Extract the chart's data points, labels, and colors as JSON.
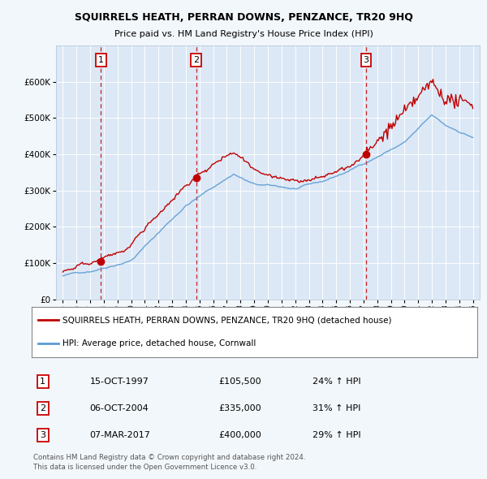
{
  "title": "SQUIRRELS HEATH, PERRAN DOWNS, PENZANCE, TR20 9HQ",
  "subtitle": "Price paid vs. HM Land Registry's House Price Index (HPI)",
  "background_color": "#dce8f0",
  "plot_bg_color": "#dce8f0",
  "grid_color": "#ffffff",
  "ylim": [
    0,
    700000
  ],
  "yticks": [
    0,
    100000,
    200000,
    300000,
    400000,
    500000,
    600000
  ],
  "sale_dates": [
    1997.79,
    2004.76,
    2017.18
  ],
  "sale_prices": [
    105500,
    335000,
    400000
  ],
  "sale_labels": [
    "1",
    "2",
    "3"
  ],
  "hpi_line_color": "#5b9bd5",
  "price_line_color": "#c00000",
  "sale_marker_color": "#c00000",
  "dashed_line_color": "#c00000",
  "legend_entries": [
    "SQUIRRELS HEATH, PERRAN DOWNS, PENZANCE, TR20 9HQ (detached house)",
    "HPI: Average price, detached house, Cornwall"
  ],
  "table_rows": [
    [
      "1",
      "15-OCT-1997",
      "£105,500",
      "24% ↑ HPI"
    ],
    [
      "2",
      "06-OCT-2004",
      "£335,000",
      "31% ↑ HPI"
    ],
    [
      "3",
      "07-MAR-2017",
      "£400,000",
      "29% ↑ HPI"
    ]
  ],
  "footnote1": "Contains HM Land Registry data © Crown copyright and database right 2024.",
  "footnote2": "This data is licensed under the Open Government Licence v3.0."
}
